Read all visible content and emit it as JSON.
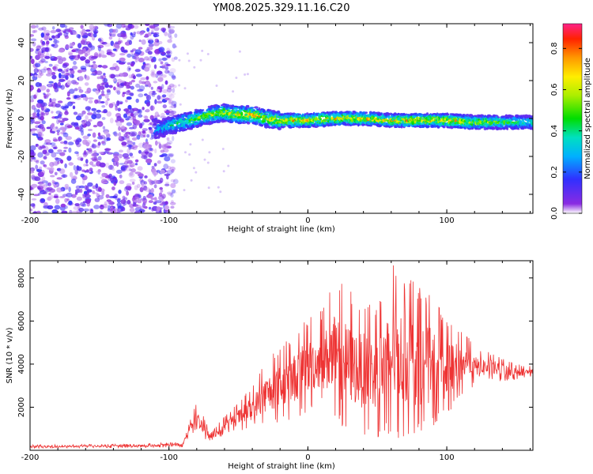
{
  "title": "YM08.2025.329.11.16.C20",
  "chart_data": [
    {
      "type": "heatmap",
      "title": "YM08.2025.329.11.16.C20",
      "xlabel": "Height of straight line (km)",
      "ylabel": "Frequency (Hz)",
      "xlim": [
        -200,
        162
      ],
      "ylim": [
        -50,
        50
      ],
      "xticks": [
        "-200",
        "-100",
        "0",
        "100"
      ],
      "yticks": [
        "-40",
        "-20",
        "0",
        "20",
        "40"
      ],
      "noise_region_km": [
        -200,
        -95
      ],
      "signal_start_km": -110,
      "signal_track": {
        "x": [
          -110,
          -100,
          -90,
          -80,
          -70,
          -60,
          -50,
          -40,
          -30,
          -20,
          -10,
          0,
          20,
          40,
          60,
          80,
          100,
          120,
          140,
          160
        ],
        "center_freq_hz": [
          -6,
          -4,
          -2,
          0,
          2,
          3,
          2,
          2,
          0,
          -1,
          -1,
          -1,
          0,
          0,
          -1,
          -1,
          -1,
          -2,
          -2,
          -2
        ],
        "peak_amplitude": [
          0.3,
          0.45,
          0.55,
          0.6,
          0.65,
          0.7,
          0.75,
          0.8,
          0.75,
          0.8,
          0.85,
          0.8,
          0.8,
          0.8,
          0.75,
          0.85,
          0.8,
          0.7,
          0.6,
          0.5
        ]
      },
      "colorbar": {
        "label": "Normalized spectral amplitude",
        "range": [
          0,
          0.92
        ],
        "ticks": [
          "0.0",
          "0.2",
          "0.4",
          "0.6",
          "0.8"
        ]
      }
    },
    {
      "type": "line",
      "xlabel": "Height of straight line (km)",
      "ylabel": "SNR (10 * v/v)",
      "xlim": [
        -200,
        162
      ],
      "ylim": [
        0,
        8800
      ],
      "xticks": [
        "-200",
        "-100",
        "0",
        "100"
      ],
      "yticks": [
        "2000",
        "4000",
        "6000",
        "8000"
      ],
      "color": "#ee3333",
      "envelope": {
        "x": [
          -200,
          -120,
          -90,
          -85,
          -80,
          -75,
          -70,
          -60,
          -50,
          -40,
          -30,
          -20,
          -10,
          0,
          10,
          20,
          30,
          40,
          50,
          60,
          70,
          80,
          90,
          100,
          110,
          120,
          130,
          140,
          150,
          162
        ],
        "low": [
          100,
          120,
          150,
          700,
          900,
          500,
          300,
          700,
          900,
          1000,
          1200,
          1300,
          1400,
          1800,
          2000,
          1000,
          800,
          700,
          600,
          500,
          600,
          700,
          1000,
          1500,
          2500,
          3000,
          3200,
          3200,
          3300,
          3400
        ],
        "high": [
          250,
          300,
          400,
          1600,
          2200,
          1600,
          800,
          1600,
          2200,
          3000,
          4200,
          4800,
          5500,
          6200,
          6500,
          8100,
          7500,
          7000,
          6800,
          8800,
          8200,
          7600,
          7200,
          6000,
          5800,
          4800,
          4600,
          4300,
          4000,
          3900
        ]
      }
    }
  ]
}
